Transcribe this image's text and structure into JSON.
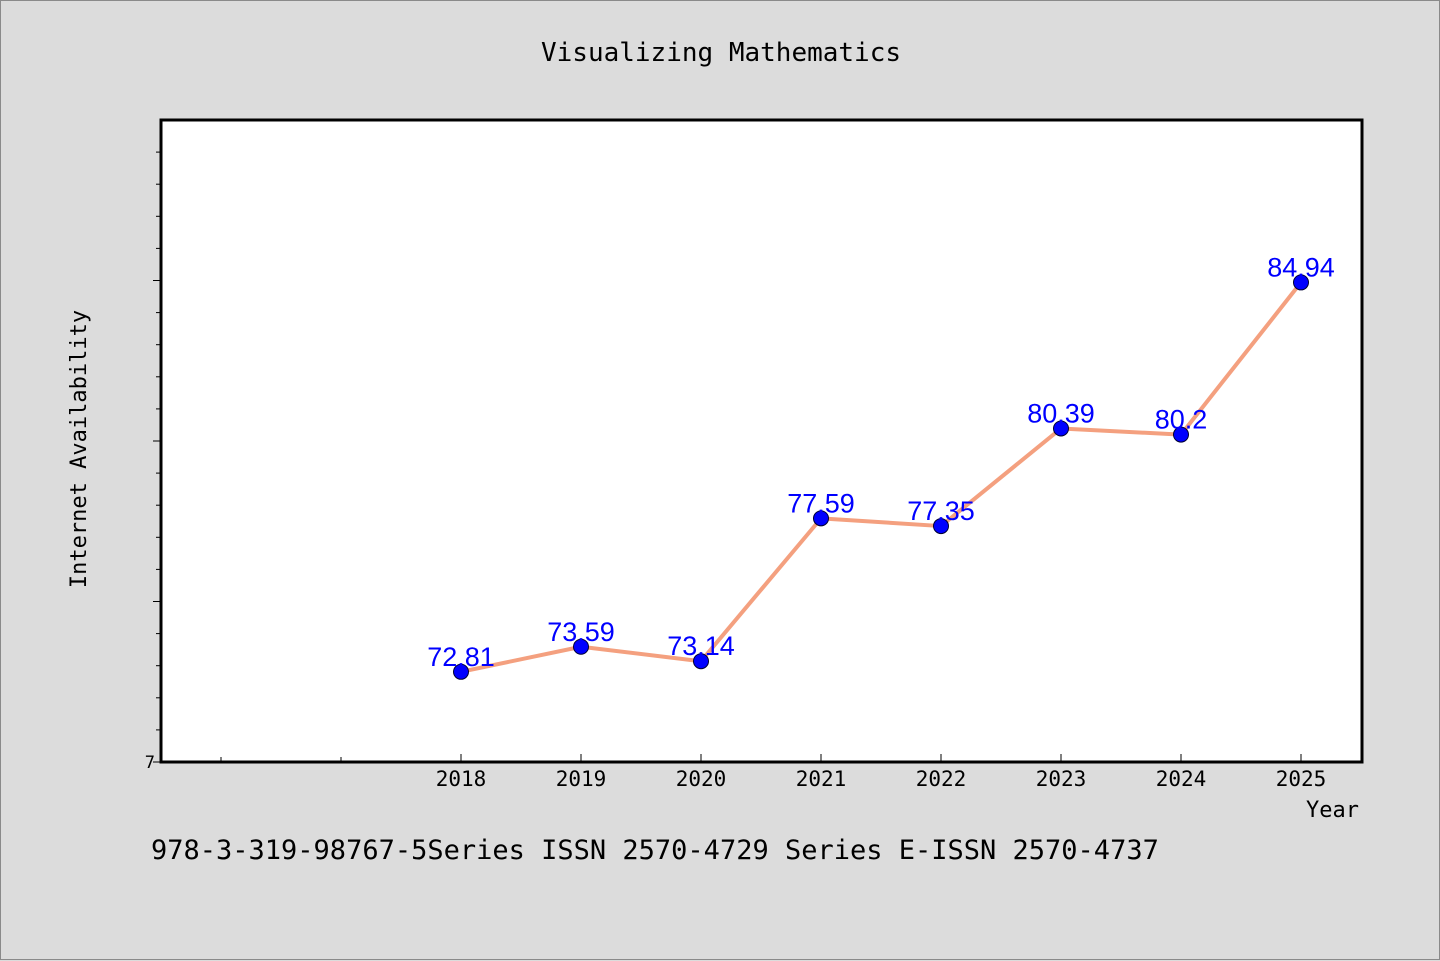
{
  "chart_data": {
    "type": "line",
    "title": "Visualizing Mathematics",
    "xlabel": "Year",
    "ylabel": "Internet Availability",
    "x": [
      "2018",
      "2019",
      "2020",
      "2021",
      "2022",
      "2023",
      "2024",
      "2025"
    ],
    "series": [
      {
        "values": [
          72.81,
          73.59,
          73.14,
          77.59,
          77.35,
          80.39,
          80.2,
          84.94
        ]
      }
    ],
    "data_labels": [
      "72.81",
      "73.59",
      "73.14",
      "77.59",
      "77.35",
      "80.39",
      "80.2",
      "84.94"
    ],
    "y_tick_labels": [
      "7"
    ],
    "ylim": [
      70,
      90
    ],
    "grid": false,
    "colors": {
      "line": "#f4a07f",
      "marker": "#0000ff",
      "label": "#0000ff",
      "background": "#dcdcdc",
      "plot_bg": "#ffffff"
    }
  },
  "footer": "978-3-319-98767-5Series ISSN 2570-4729 Series E-ISSN 2570-4737"
}
